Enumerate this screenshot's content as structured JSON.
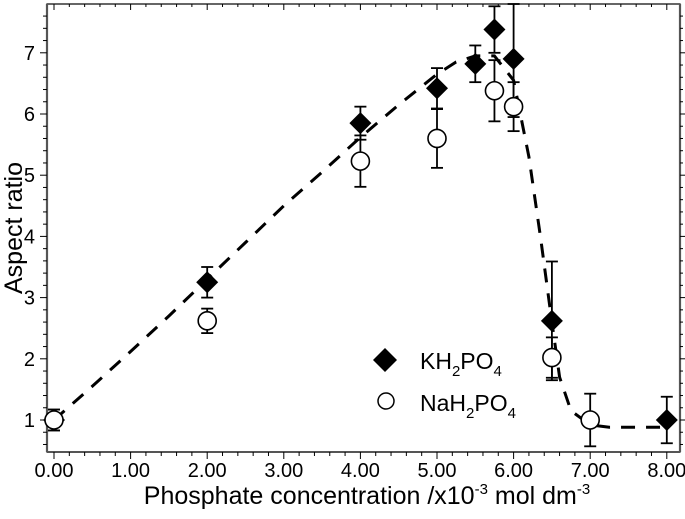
{
  "chart_data": {
    "type": "scatter",
    "title": "",
    "xlabel": "Phosphate concentration /x10-3 mol dm-3",
    "xlabel_parts": {
      "main": "Phosphate concentration /x10",
      "sup1": "-3",
      "mid": " mol dm",
      "sup2": "-3"
    },
    "ylabel": "Aspect ratio",
    "xlim": [
      -0.1,
      8.1
    ],
    "ylim": [
      0.5,
      7.8
    ],
    "x_ticks": [
      0,
      1,
      2,
      3,
      4,
      5,
      6,
      7,
      8
    ],
    "x_tick_labels": [
      "0.00",
      "1.00",
      "2.00",
      "3.00",
      "4.00",
      "5.00",
      "6.00",
      "7.00",
      "8.00"
    ],
    "y_ticks": [
      1,
      2,
      3,
      4,
      5,
      6,
      7
    ],
    "y_tick_labels": [
      "1",
      "2",
      "3",
      "4",
      "5",
      "6",
      "7"
    ],
    "grid": false,
    "legend_position": "lower-center-right",
    "series": [
      {
        "name": "KH2PO4",
        "label_parts": {
          "a": "KH",
          "s1": "2",
          "b": "PO",
          "s2": "4"
        },
        "marker": "filled-diamond",
        "color": "#000000",
        "x": [
          0.0,
          2.0,
          4.0,
          5.0,
          5.5,
          5.75,
          6.0,
          6.5,
          8.0
        ],
        "y": [
          1.0,
          3.25,
          5.85,
          6.42,
          6.82,
          7.38,
          6.9,
          2.62,
          1.0
        ],
        "err": [
          0.17,
          0.25,
          0.27,
          0.33,
          0.3,
          0.38,
          0.95,
          0.97,
          0.38
        ]
      },
      {
        "name": "NaH2PO4",
        "label_parts": {
          "a": "NaH",
          "s1": "2",
          "b": "PO",
          "s2": "4"
        },
        "marker": "open-circle",
        "color": "#000000",
        "x": [
          0.0,
          2.0,
          4.0,
          5.0,
          5.75,
          6.0,
          6.5,
          7.0
        ],
        "y": [
          1.0,
          2.62,
          5.23,
          5.6,
          6.38,
          6.12,
          2.02,
          1.0
        ],
        "err": [
          0.17,
          0.2,
          0.42,
          0.48,
          0.5,
          0.4,
          0.33,
          0.43
        ]
      }
    ],
    "fit_curve": {
      "style": "dashed",
      "x": [
        0.0,
        0.5,
        1.0,
        1.5,
        2.0,
        2.5,
        3.0,
        3.5,
        4.0,
        4.5,
        5.0,
        5.25,
        5.5,
        5.75,
        6.0,
        6.2,
        6.35,
        6.5,
        6.6,
        6.75,
        7.0,
        7.25,
        7.5,
        7.75,
        8.0
      ],
      "y": [
        1.0,
        1.55,
        2.12,
        2.7,
        3.3,
        3.9,
        4.5,
        5.05,
        5.62,
        6.15,
        6.65,
        6.85,
        6.95,
        6.95,
        6.55,
        5.3,
        4.0,
        2.6,
        1.7,
        1.15,
        0.92,
        0.88,
        0.88,
        0.88,
        0.88
      ]
    }
  }
}
